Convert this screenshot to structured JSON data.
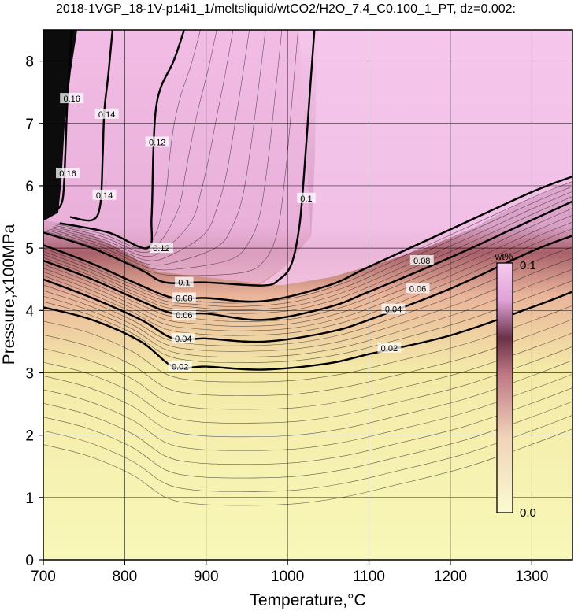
{
  "chart_data": {
    "type": "contour",
    "title": "2018-1VGP_18-1V-p14i1_1/meltsliquid/wtCO2/H2O_7.4_C0.100_1_PT, dz=0.002:",
    "xlabel": "Temperature,°C",
    "ylabel": "Pressure,x100MPa",
    "xlim": [
      700,
      1350
    ],
    "ylim": [
      0,
      8.5
    ],
    "x_ticks": [
      "700",
      "800",
      "900",
      "1000",
      "1100",
      "1200",
      "1300"
    ],
    "y_ticks": [
      "0",
      "1",
      "2",
      "3",
      "4",
      "5",
      "6",
      "7",
      "8"
    ],
    "grid": true,
    "colorbar": {
      "label": "wt%",
      "min_label": "0.0",
      "max_label": "0.1",
      "colors": [
        "#f7f7b2",
        "#e0a090",
        "#5a2a3a",
        "#f5c8ec"
      ]
    },
    "contours": [
      {
        "level": "0.02",
        "points": [
          [
            700,
            4.05
          ],
          [
            760,
            3.85
          ],
          [
            820,
            3.5
          ],
          [
            860,
            3.1
          ],
          [
            900,
            3.1
          ],
          [
            970,
            3.05
          ],
          [
            1050,
            3.15
          ],
          [
            1100,
            3.3
          ],
          [
            1200,
            3.6
          ],
          [
            1300,
            4.05
          ],
          [
            1350,
            4.3
          ]
        ]
      },
      {
        "level": "0.04",
        "points": [
          [
            700,
            4.5
          ],
          [
            760,
            4.2
          ],
          [
            820,
            3.85
          ],
          [
            860,
            3.55
          ],
          [
            900,
            3.55
          ],
          [
            970,
            3.5
          ],
          [
            1050,
            3.65
          ],
          [
            1100,
            3.85
          ],
          [
            1200,
            4.35
          ],
          [
            1300,
            4.95
          ],
          [
            1350,
            5.2
          ]
        ]
      },
      {
        "level": "0.06",
        "points": [
          [
            700,
            4.8
          ],
          [
            760,
            4.5
          ],
          [
            820,
            4.15
          ],
          [
            860,
            3.95
          ],
          [
            900,
            3.95
          ],
          [
            970,
            3.85
          ],
          [
            1050,
            4.05
          ],
          [
            1100,
            4.3
          ],
          [
            1200,
            4.85
          ],
          [
            1300,
            5.45
          ],
          [
            1350,
            5.75
          ]
        ]
      },
      {
        "level": "0.08",
        "points": [
          [
            700,
            5.05
          ],
          [
            760,
            4.75
          ],
          [
            820,
            4.4
          ],
          [
            860,
            4.2
          ],
          [
            900,
            4.2
          ],
          [
            970,
            4.15
          ],
          [
            1050,
            4.4
          ],
          [
            1100,
            4.7
          ],
          [
            1200,
            5.3
          ],
          [
            1300,
            5.9
          ],
          [
            1350,
            6.15
          ]
        ]
      },
      {
        "level": "0.1",
        "points": [
          [
            700,
            5.25
          ],
          [
            760,
            5.0
          ],
          [
            820,
            4.65
          ],
          [
            850,
            4.45
          ],
          [
            900,
            4.45
          ],
          [
            970,
            4.4
          ],
          [
            990,
            4.5
          ],
          [
            1005,
            4.75
          ],
          [
            1015,
            5.4
          ],
          [
            1022,
            6.5
          ],
          [
            1028,
            7.6
          ],
          [
            1033,
            8.5
          ]
        ]
      },
      {
        "level": "0.12",
        "points": [
          [
            720,
            5.4
          ],
          [
            780,
            5.25
          ],
          [
            828,
            5.0
          ],
          [
            833,
            5.5
          ],
          [
            835,
            6.5
          ],
          [
            838,
            7.2
          ],
          [
            845,
            7.6
          ],
          [
            860,
            8.0
          ],
          [
            873,
            8.5
          ]
        ]
      },
      {
        "level": "0.14",
        "points": [
          [
            733,
            5.5
          ],
          [
            760,
            5.45
          ],
          [
            770,
            5.7
          ],
          [
            773,
            6.5
          ],
          [
            775,
            7.2
          ],
          [
            780,
            7.8
          ],
          [
            785,
            8.5
          ]
        ]
      },
      {
        "level": "0.16",
        "points": [
          [
            716,
            5.6
          ],
          [
            724,
            5.8
          ],
          [
            727,
            6.5
          ],
          [
            729,
            7.2
          ],
          [
            732,
            7.9
          ],
          [
            735,
            8.5
          ]
        ]
      }
    ],
    "contour_labels": [
      {
        "text": "0.02",
        "x": 868,
        "y": 3.1
      },
      {
        "text": "0.02",
        "x": 1125,
        "y": 3.4
      },
      {
        "text": "0.04",
        "x": 872,
        "y": 3.55
      },
      {
        "text": "0.04",
        "x": 1130,
        "y": 4.02
      },
      {
        "text": "0.06",
        "x": 873,
        "y": 3.93
      },
      {
        "text": "0.06",
        "x": 1160,
        "y": 4.35
      },
      {
        "text": "0.08",
        "x": 873,
        "y": 4.2
      },
      {
        "text": "0.08",
        "x": 1165,
        "y": 4.8
      },
      {
        "text": "0.1",
        "x": 873,
        "y": 4.45
      },
      {
        "text": "0.1",
        "x": 1023,
        "y": 5.8
      },
      {
        "text": "0.12",
        "x": 845,
        "y": 5.0
      },
      {
        "text": "0.12",
        "x": 840,
        "y": 6.7
      },
      {
        "text": "0.14",
        "x": 775,
        "y": 5.85
      },
      {
        "text": "0.14",
        "x": 778,
        "y": 7.15
      },
      {
        "text": "0.16",
        "x": 730,
        "y": 6.2
      },
      {
        "text": "0.16",
        "x": 735,
        "y": 7.4
      }
    ]
  }
}
